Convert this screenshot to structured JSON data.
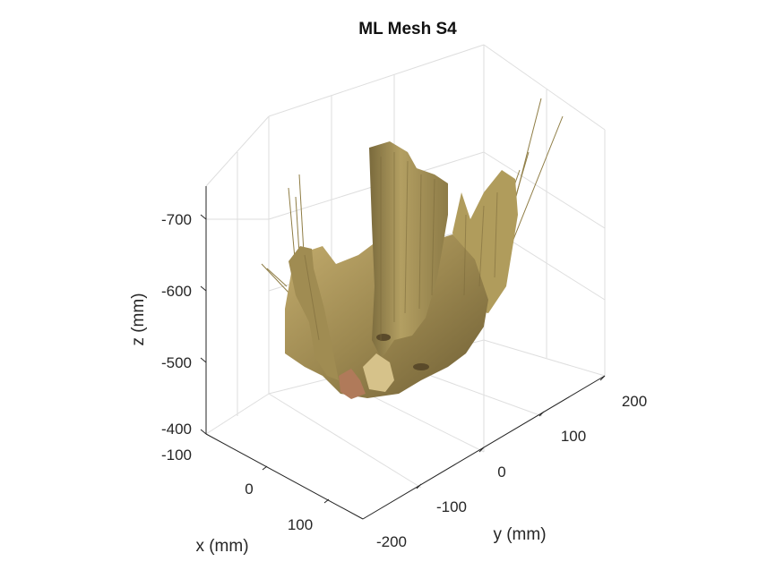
{
  "chart_data": {
    "type": "surface",
    "title": "ML Mesh S4",
    "xlabel": "x (mm)",
    "ylabel": "y (mm)",
    "zlabel": "z (mm)",
    "x_ticks": [
      "-100",
      "0",
      "100"
    ],
    "y_ticks": [
      "-200",
      "-100",
      "0",
      "100",
      "200"
    ],
    "z_ticks": [
      "-400",
      "-500",
      "-600",
      "-700"
    ],
    "xlim": [
      -100,
      100
    ],
    "ylim": [
      -200,
      200
    ],
    "zlim": [
      -400,
      -700
    ],
    "grid": true,
    "legend": "none",
    "surface_color": "#a8955a",
    "skin_color": "#b07a5a"
  }
}
